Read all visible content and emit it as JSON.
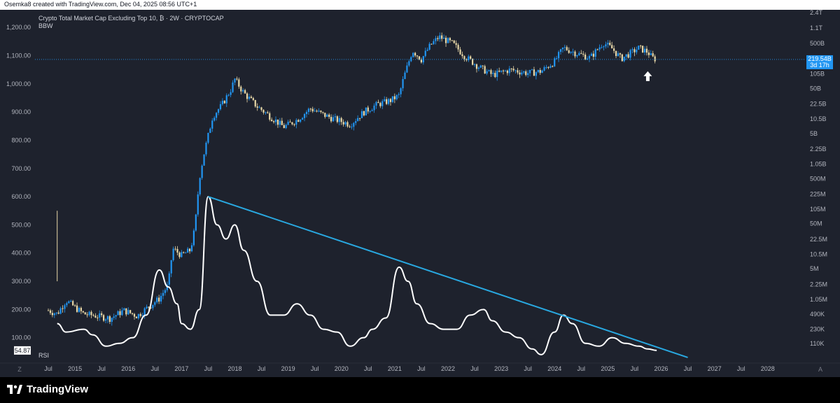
{
  "header": {
    "text": "Osemka8 created with TradingView.com, Dec 04, 2025 08:56 UTC+1"
  },
  "legend": {
    "symbol": "Crypto Total Market Cap Excluding Top 10, ₿ · 2W · CRYPTOCAP",
    "sub": "BBW"
  },
  "rsi_label": "RSI",
  "footer": {
    "brand": "TradingView",
    "left_glyph": "Z",
    "right_glyph": "A"
  },
  "colors": {
    "background": "#1e222d",
    "up": "#2196f3",
    "down": "#e8d8a8",
    "trendline": "#29a8e0",
    "rsi": "#ffffff",
    "price_tag": "#2196f3"
  },
  "price_tag": {
    "value": "219.54B",
    "countdown": "3d 17h"
  },
  "last_value_tag": "54.87",
  "chart_data": [
    {
      "type": "candlestick",
      "title": "Crypto Total Market Cap Excluding Top 10, ₿ · 2W · CRYPTOCAP",
      "scale": "log",
      "y_ticks_right": [
        "2.4T",
        "1.1T",
        "500B",
        "219.54B",
        "105B",
        "50B",
        "22.5B",
        "10.5B",
        "5B",
        "2.25B",
        "1.05B",
        "500M",
        "225M",
        "105M",
        "50M",
        "22.5M",
        "10.5M",
        "5M",
        "2.25M",
        "1.05M",
        "490K",
        "230K",
        "110K"
      ],
      "y_tick_values_right": [
        2400000000000.0,
        1100000000000.0,
        500000000000.0,
        219540000000.0,
        105000000000.0,
        50000000000.0,
        22500000000.0,
        10500000000.0,
        5000000000.0,
        2250000000.0,
        1050000000.0,
        500000000.0,
        225000000.0,
        105000000.0,
        50000000.0,
        22500000.0,
        10500000.0,
        5000000.0,
        2250000.0,
        1050000.0,
        490000.0,
        230000.0,
        110000.0
      ],
      "last_price": "219.54B",
      "x_ticks": [
        "Jul",
        "2015",
        "Jul",
        "2016",
        "Jul",
        "2017",
        "Jul",
        "2018",
        "Jul",
        "2019",
        "Jul",
        "2020",
        "Jul",
        "2021",
        "Jul",
        "2022",
        "Jul",
        "2023",
        "Jul",
        "2024",
        "Jul",
        "2025",
        "Jul",
        "2026",
        "Jul",
        "2027",
        "Jul",
        "2028"
      ],
      "x_range": [
        "2014-03",
        "2028-06"
      ],
      "series": [
        {
          "name": "price",
          "points": [
            [
              "2014-07",
              600000
            ],
            [
              "2014-09",
              500000
            ],
            [
              "2014-11",
              1000000
            ],
            [
              "2015-01",
              700000
            ],
            [
              "2015-03",
              500000
            ],
            [
              "2015-06",
              450000
            ],
            [
              "2015-09",
              400000
            ],
            [
              "2015-12",
              600000
            ],
            [
              "2016-03",
              450000
            ],
            [
              "2016-05",
              650000
            ],
            [
              "2016-08",
              1100000
            ],
            [
              "2016-10",
              2200000
            ],
            [
              "2016-11",
              14000000
            ],
            [
              "2017-01",
              10000000
            ],
            [
              "2017-03",
              13000000
            ],
            [
              "2017-04",
              40000000
            ],
            [
              "2017-05",
              500000000
            ],
            [
              "2017-06",
              1700000000
            ],
            [
              "2017-08",
              12000000000
            ],
            [
              "2017-10",
              21000000000
            ],
            [
              "2017-12",
              45000000000
            ],
            [
              "2018-01",
              80000000000
            ],
            [
              "2018-03",
              40000000000
            ],
            [
              "2018-06",
              20000000000
            ],
            [
              "2018-09",
              12000000000
            ],
            [
              "2018-12",
              7000000000
            ],
            [
              "2019-03",
              10000000000
            ],
            [
              "2019-06",
              18000000000
            ],
            [
              "2019-09",
              13000000000
            ],
            [
              "2019-12",
              10000000000
            ],
            [
              "2020-03",
              8000000000
            ],
            [
              "2020-06",
              15000000000
            ],
            [
              "2020-09",
              22000000000
            ],
            [
              "2020-12",
              27000000000
            ],
            [
              "2021-02",
              35000000000
            ],
            [
              "2021-03",
              85000000000
            ],
            [
              "2021-05",
              350000000000
            ],
            [
              "2021-07",
              220000000000
            ],
            [
              "2021-09",
              450000000000
            ],
            [
              "2021-11",
              700000000000
            ],
            [
              "2022-02",
              500000000000
            ],
            [
              "2022-05",
              250000000000
            ],
            [
              "2022-08",
              150000000000
            ],
            [
              "2022-11",
              100000000000
            ],
            [
              "2023-03",
              130000000000
            ],
            [
              "2023-07",
              110000000000
            ],
            [
              "2023-10",
              120000000000
            ],
            [
              "2024-01",
              200000000000
            ],
            [
              "2024-03",
              400000000000
            ],
            [
              "2024-06",
              300000000000
            ],
            [
              "2024-09",
              240000000000
            ],
            [
              "2024-12",
              520000000000
            ],
            [
              "2025-02",
              380000000000
            ],
            [
              "2025-04",
              230000000000
            ],
            [
              "2025-06",
              300000000000
            ],
            [
              "2025-08",
              400000000000
            ],
            [
              "2025-10",
              320000000000
            ],
            [
              "2025-11",
              240000000000
            ],
            [
              "2025-12",
              219540000000
            ]
          ]
        }
      ]
    },
    {
      "type": "line",
      "title": "RSI",
      "y_ticks_left": [
        "1,200.00",
        "1,100.00",
        "1,000.00",
        "900.00",
        "800.00",
        "700.00",
        "600.00",
        "500.00",
        "400.00",
        "300.00",
        "200.00",
        "100.00"
      ],
      "y_tick_values_left": [
        1200,
        1100,
        1000,
        900,
        800,
        700,
        600,
        500,
        400,
        300,
        200,
        100
      ],
      "y_range": [
        0,
        1250
      ],
      "last_value": "54.87",
      "series": [
        {
          "name": "RSI",
          "points": [
            [
              "2014-09",
              150
            ],
            [
              "2014-11",
              120
            ],
            [
              "2015-03",
              130
            ],
            [
              "2015-05",
              110
            ],
            [
              "2015-08",
              70
            ],
            [
              "2015-11",
              80
            ],
            [
              "2016-02",
              100
            ],
            [
              "2016-05",
              180
            ],
            [
              "2016-08",
              340
            ],
            [
              "2016-10",
              280
            ],
            [
              "2016-12",
              220
            ],
            [
              "2017-01",
              150
            ],
            [
              "2017-03",
              130
            ],
            [
              "2017-05",
              200
            ],
            [
              "2017-07",
              600
            ],
            [
              "2017-09",
              500
            ],
            [
              "2017-11",
              450
            ],
            [
              "2018-01",
              500
            ],
            [
              "2018-03",
              410
            ],
            [
              "2018-06",
              300
            ],
            [
              "2018-09",
              180
            ],
            [
              "2018-12",
              180
            ],
            [
              "2019-03",
              220
            ],
            [
              "2019-06",
              180
            ],
            [
              "2019-09",
              130
            ],
            [
              "2019-12",
              120
            ],
            [
              "2020-03",
              70
            ],
            [
              "2020-06",
              100
            ],
            [
              "2020-08",
              130
            ],
            [
              "2020-11",
              170
            ],
            [
              "2021-02",
              350
            ],
            [
              "2021-04",
              300
            ],
            [
              "2021-06",
              220
            ],
            [
              "2021-09",
              150
            ],
            [
              "2021-12",
              130
            ],
            [
              "2022-03",
              130
            ],
            [
              "2022-06",
              180
            ],
            [
              "2022-09",
              200
            ],
            [
              "2022-11",
              160
            ],
            [
              "2023-02",
              120
            ],
            [
              "2023-05",
              100
            ],
            [
              "2023-08",
              60
            ],
            [
              "2023-10",
              40
            ],
            [
              "2024-01",
              120
            ],
            [
              "2024-03",
              180
            ],
            [
              "2024-05",
              150
            ],
            [
              "2024-08",
              80
            ],
            [
              "2024-11",
              70
            ],
            [
              "2025-02",
              100
            ],
            [
              "2025-05",
              80
            ],
            [
              "2025-08",
              70
            ],
            [
              "2025-10",
              60
            ],
            [
              "2025-12",
              54.87
            ]
          ]
        },
        {
          "name": "trendline",
          "points": [
            [
              "2017-07",
              600
            ],
            [
              "2026-07",
              30
            ]
          ]
        }
      ]
    }
  ]
}
